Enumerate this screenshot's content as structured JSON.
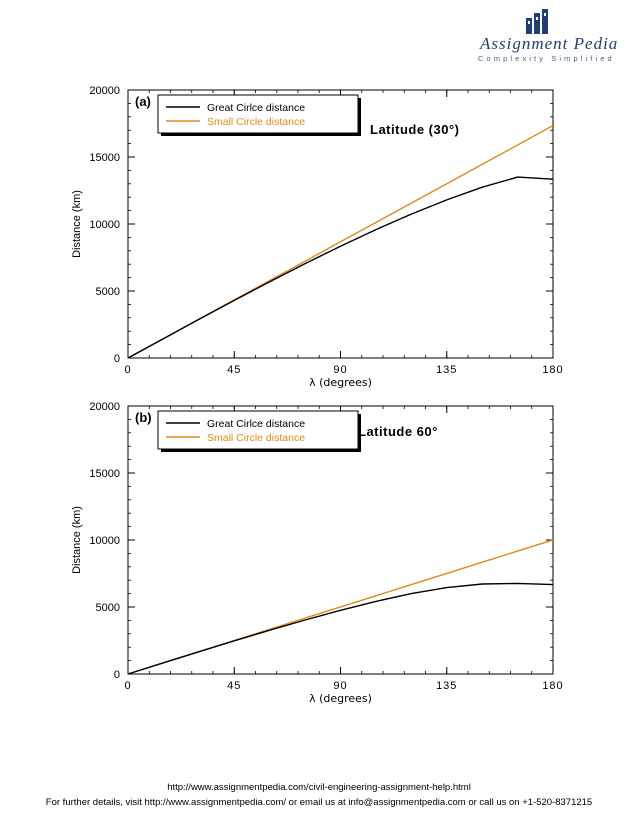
{
  "logo": {
    "name": "Assignment Pedia",
    "tagline": "Complexity Simplified"
  },
  "footer": {
    "url_line": "http://www.assignmentpedia.com/civil-engineering-assignment-help.html",
    "contact_line": "For further details, visit http://www.assignmentpedia.com/ or email us at info@assignmentpedia.com or call us on +1-520-8371215"
  },
  "colors": {
    "great_circle": "#000000",
    "small_circle": "#e08a1a",
    "logo": "#1f3f73"
  },
  "chart_data": [
    {
      "type": "line",
      "panel_label": "(a)",
      "annotation": "Latitude (30°)",
      "xlabel": "λ (degrees)",
      "ylabel": "Distance (km)",
      "xlim": [
        0,
        180
      ],
      "ylim": [
        0,
        20000
      ],
      "xticks": [
        "0",
        "45",
        "90",
        "135",
        "180"
      ],
      "yticks": [
        "0",
        "5000",
        "10000",
        "15000",
        "20000"
      ],
      "legend": "top-left",
      "x": [
        0,
        15,
        30,
        45,
        60,
        75,
        90,
        105,
        120,
        135,
        150,
        165,
        180
      ],
      "series": [
        {
          "name": "Great Cirlce distance",
          "color": "#000000",
          "values": [
            0,
            1444,
            2881,
            4300,
            5692,
            7045,
            8347,
            9584,
            10741,
            11802,
            12746,
            13500,
            13343
          ]
        },
        {
          "name": "Small Circle distance",
          "color": "#e08a1a",
          "values": [
            0,
            1445,
            2890,
            4335,
            5780,
            7225,
            8670,
            10115,
            11560,
            13005,
            14450,
            15895,
            17340
          ]
        }
      ]
    },
    {
      "type": "line",
      "panel_label": "(b)",
      "annotation": "Latitude 60°",
      "xlabel": "λ (degrees)",
      "ylabel": "Distance (km)",
      "xlim": [
        0,
        180
      ],
      "ylim": [
        0,
        20000
      ],
      "xticks": [
        "0",
        "45",
        "90",
        "135",
        "180"
      ],
      "yticks": [
        "0",
        "5000",
        "10000",
        "15000",
        "20000"
      ],
      "legend": "top-left",
      "x": [
        0,
        15,
        30,
        45,
        60,
        75,
        90,
        105,
        120,
        135,
        150,
        165,
        180
      ],
      "series": [
        {
          "name": "Great Cirlce distance",
          "color": "#000000",
          "values": [
            0,
            833,
            1660,
            2476,
            3270,
            4033,
            4755,
            5418,
            5997,
            6451,
            6714,
            6760,
            6671
          ]
        },
        {
          "name": "Small Circle distance",
          "color": "#e08a1a",
          "values": [
            0,
            834,
            1668,
            2502,
            3336,
            4170,
            5004,
            5838,
            6672,
            7506,
            8340,
            9174,
            10008
          ]
        }
      ]
    }
  ]
}
